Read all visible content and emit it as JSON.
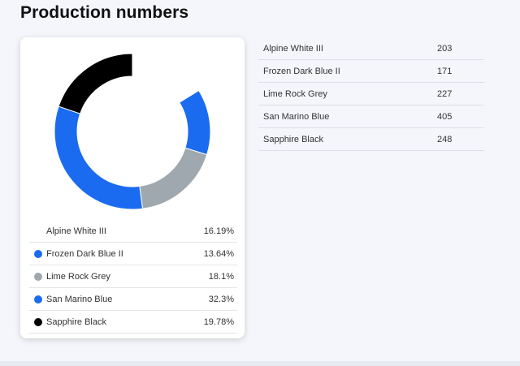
{
  "page": {
    "title": "Production numbers"
  },
  "colors": {
    "background": "#f4f6fc",
    "card": "#ffffff"
  },
  "chart_data": {
    "type": "pie",
    "title": "",
    "categories": [
      "Alpine White III",
      "Frozen Dark Blue II",
      "Lime Rock Grey",
      "San Marino Blue",
      "Sapphire Black"
    ],
    "values": [
      203,
      171,
      227,
      405,
      248
    ],
    "percent_labels": [
      "16.19%",
      "13.64%",
      "18.1%",
      "32.3%",
      "19.78%"
    ],
    "colors": [
      "#ffffff",
      "#1a6bf0",
      "#9ea8ae",
      "#1a6bf0",
      "#000000"
    ],
    "donut": true,
    "legend": "bottom"
  },
  "table": {
    "rows": [
      {
        "name": "Alpine White III",
        "value": "203"
      },
      {
        "name": "Frozen Dark Blue II",
        "value": "171"
      },
      {
        "name": "Lime Rock Grey",
        "value": "227"
      },
      {
        "name": "San Marino Blue",
        "value": "405"
      },
      {
        "name": "Sapphire Black",
        "value": "248"
      }
    ]
  }
}
